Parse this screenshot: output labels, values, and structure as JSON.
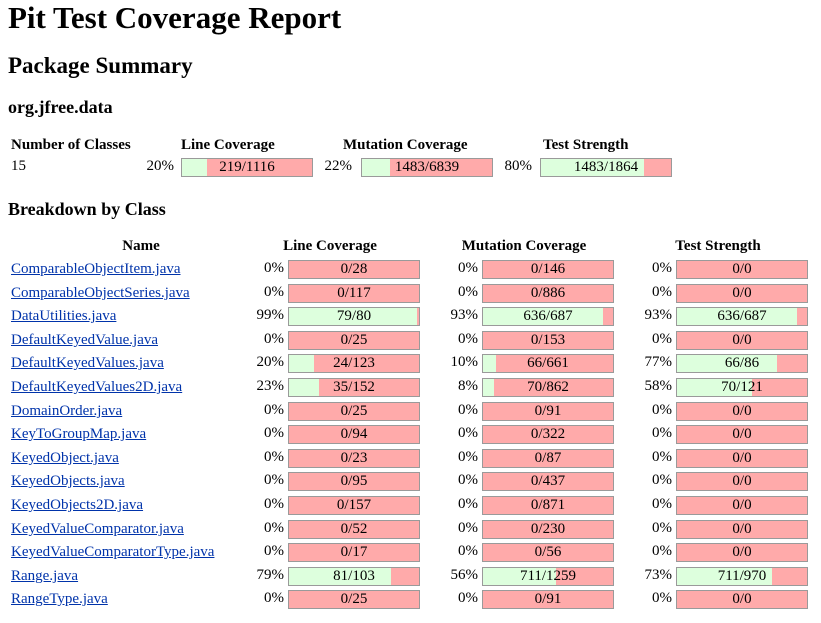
{
  "title": "Pit Test Coverage Report",
  "subtitle": "Package Summary",
  "package_name": "org.jfree.data",
  "summary": {
    "headers": {
      "classes": "Number of Classes",
      "line": "Line Coverage",
      "mutation": "Mutation Coverage",
      "strength": "Test Strength"
    },
    "num_classes": "15",
    "line": {
      "pct": "20%",
      "text": "219/1116",
      "fraction": 0.196
    },
    "mutation": {
      "pct": "22%",
      "text": "1483/6839",
      "fraction": 0.217
    },
    "strength": {
      "pct": "80%",
      "text": "1483/1864",
      "fraction": 0.796
    }
  },
  "breakdown_title": "Breakdown by Class",
  "columns": {
    "name": "Name",
    "line": "Line Coverage",
    "mutation": "Mutation Coverage",
    "strength": "Test Strength"
  },
  "colors": {
    "covered": "#ddffdd",
    "uncovered": "#ffaaaa",
    "link": "#0033aa"
  },
  "rows": [
    {
      "name": "ComparableObjectItem.java",
      "line_pct": "0%",
      "line_text": "0/28",
      "line_frac": 0,
      "mut_pct": "0%",
      "mut_text": "0/146",
      "mut_frac": 0,
      "str_pct": "0%",
      "str_text": "0/0",
      "str_frac": 0
    },
    {
      "name": "ComparableObjectSeries.java",
      "line_pct": "0%",
      "line_text": "0/117",
      "line_frac": 0,
      "mut_pct": "0%",
      "mut_text": "0/886",
      "mut_frac": 0,
      "str_pct": "0%",
      "str_text": "0/0",
      "str_frac": 0
    },
    {
      "name": "DataUtilities.java",
      "line_pct": "99%",
      "line_text": "79/80",
      "line_frac": 0.9875,
      "mut_pct": "93%",
      "mut_text": "636/687",
      "mut_frac": 0.926,
      "str_pct": "93%",
      "str_text": "636/687",
      "str_frac": 0.926
    },
    {
      "name": "DefaultKeyedValue.java",
      "line_pct": "0%",
      "line_text": "0/25",
      "line_frac": 0,
      "mut_pct": "0%",
      "mut_text": "0/153",
      "mut_frac": 0,
      "str_pct": "0%",
      "str_text": "0/0",
      "str_frac": 0
    },
    {
      "name": "DefaultKeyedValues.java",
      "line_pct": "20%",
      "line_text": "24/123",
      "line_frac": 0.195,
      "mut_pct": "10%",
      "mut_text": "66/661",
      "mut_frac": 0.1,
      "str_pct": "77%",
      "str_text": "66/86",
      "str_frac": 0.767
    },
    {
      "name": "DefaultKeyedValues2D.java",
      "line_pct": "23%",
      "line_text": "35/152",
      "line_frac": 0.23,
      "mut_pct": "8%",
      "mut_text": "70/862",
      "mut_frac": 0.081,
      "str_pct": "58%",
      "str_text": "70/121",
      "str_frac": 0.579
    },
    {
      "name": "DomainOrder.java",
      "line_pct": "0%",
      "line_text": "0/25",
      "line_frac": 0,
      "mut_pct": "0%",
      "mut_text": "0/91",
      "mut_frac": 0,
      "str_pct": "0%",
      "str_text": "0/0",
      "str_frac": 0
    },
    {
      "name": "KeyToGroupMap.java",
      "line_pct": "0%",
      "line_text": "0/94",
      "line_frac": 0,
      "mut_pct": "0%",
      "mut_text": "0/322",
      "mut_frac": 0,
      "str_pct": "0%",
      "str_text": "0/0",
      "str_frac": 0
    },
    {
      "name": "KeyedObject.java",
      "line_pct": "0%",
      "line_text": "0/23",
      "line_frac": 0,
      "mut_pct": "0%",
      "mut_text": "0/87",
      "mut_frac": 0,
      "str_pct": "0%",
      "str_text": "0/0",
      "str_frac": 0
    },
    {
      "name": "KeyedObjects.java",
      "line_pct": "0%",
      "line_text": "0/95",
      "line_frac": 0,
      "mut_pct": "0%",
      "mut_text": "0/437",
      "mut_frac": 0,
      "str_pct": "0%",
      "str_text": "0/0",
      "str_frac": 0
    },
    {
      "name": "KeyedObjects2D.java",
      "line_pct": "0%",
      "line_text": "0/157",
      "line_frac": 0,
      "mut_pct": "0%",
      "mut_text": "0/871",
      "mut_frac": 0,
      "str_pct": "0%",
      "str_text": "0/0",
      "str_frac": 0
    },
    {
      "name": "KeyedValueComparator.java",
      "line_pct": "0%",
      "line_text": "0/52",
      "line_frac": 0,
      "mut_pct": "0%",
      "mut_text": "0/230",
      "mut_frac": 0,
      "str_pct": "0%",
      "str_text": "0/0",
      "str_frac": 0
    },
    {
      "name": "KeyedValueComparatorType.java",
      "line_pct": "0%",
      "line_text": "0/17",
      "line_frac": 0,
      "mut_pct": "0%",
      "mut_text": "0/56",
      "mut_frac": 0,
      "str_pct": "0%",
      "str_text": "0/0",
      "str_frac": 0
    },
    {
      "name": "Range.java",
      "line_pct": "79%",
      "line_text": "81/103",
      "line_frac": 0.786,
      "mut_pct": "56%",
      "mut_text": "711/1259",
      "mut_frac": 0.565,
      "str_pct": "73%",
      "str_text": "711/970",
      "str_frac": 0.733
    },
    {
      "name": "RangeType.java",
      "line_pct": "0%",
      "line_text": "0/25",
      "line_frac": 0,
      "mut_pct": "0%",
      "mut_text": "0/91",
      "mut_frac": 0,
      "str_pct": "0%",
      "str_text": "0/0",
      "str_frac": 0
    }
  ]
}
